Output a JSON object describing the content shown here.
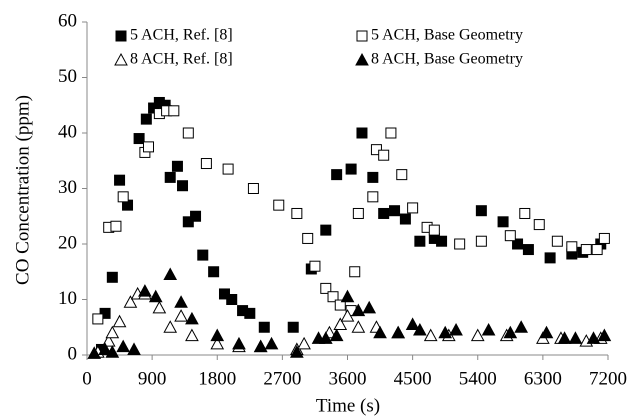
{
  "chart_data": {
    "type": "scatter",
    "x_label": "Time (s)",
    "y_label": "CO Concentration (ppm)",
    "xlim": [
      0,
      7200
    ],
    "xticks": [
      0,
      900,
      1800,
      2700,
      3600,
      4500,
      5400,
      6300,
      7200
    ],
    "ylim": [
      0,
      60
    ],
    "yticks": [
      0,
      10,
      20,
      30,
      40,
      50,
      60
    ],
    "grid": false,
    "series": [
      {
        "name": "5 ACH, Ref. [8]",
        "color": "#000000",
        "marker": "square",
        "filled": true,
        "x": [
          200,
          250,
          350,
          450,
          560,
          720,
          820,
          920,
          1000,
          1080,
          1150,
          1250,
          1320,
          1400,
          1500,
          1600,
          1750,
          1900,
          2000,
          2150,
          2250,
          2450,
          2850,
          3100,
          3300,
          3450,
          3650,
          3800,
          3950,
          4100,
          4250,
          4400,
          4600,
          4800,
          4900,
          5450,
          5750,
          5950,
          6100,
          6400,
          6700,
          6850,
          7100
        ],
        "values": [
          1,
          7.5,
          14,
          31.5,
          27,
          39,
          42.5,
          44.5,
          45.5,
          45,
          32,
          34,
          30.5,
          24,
          25,
          18,
          15,
          11,
          10,
          8,
          7.5,
          5,
          5,
          15.5,
          22.5,
          32.5,
          33.5,
          40,
          32,
          25.5,
          26,
          24.5,
          20.5,
          21,
          20.5,
          26,
          24,
          20,
          19,
          17.5,
          18.2,
          18.5,
          20
        ]
      },
      {
        "name": "5 ACH, Base Geometry",
        "color": "#000000",
        "marker": "square",
        "filled": false,
        "x": [
          150,
          300,
          400,
          500,
          800,
          850,
          1000,
          1100,
          1200,
          1400,
          1650,
          1950,
          2300,
          2650,
          2900,
          3050,
          3150,
          3300,
          3400,
          3500,
          3650,
          3700,
          3750,
          3950,
          4000,
          4100,
          4200,
          4350,
          4500,
          4700,
          4800,
          5150,
          5450,
          5850,
          6050,
          6250,
          6500,
          6700,
          6900,
          7050,
          7150
        ],
        "values": [
          6.5,
          23,
          23.2,
          28.5,
          36.5,
          37.5,
          43.5,
          44,
          44,
          40,
          34.5,
          33.5,
          30,
          27,
          25.5,
          21,
          16,
          12,
          10.5,
          9,
          8,
          15,
          25.5,
          28.5,
          37,
          36,
          40,
          32.5,
          26.5,
          23,
          22.5,
          20,
          20.5,
          21.5,
          25.5,
          23.5,
          20.5,
          19.5,
          19,
          19,
          21
        ]
      },
      {
        "name": "8 ACH, Ref. [8]",
        "color": "#000000",
        "marker": "triangle",
        "filled": false,
        "x": [
          150,
          300,
          350,
          450,
          600,
          700,
          800,
          1000,
          1150,
          1300,
          1450,
          1800,
          2100,
          2400,
          2900,
          3000,
          3350,
          3500,
          3600,
          3750,
          4000,
          4300,
          4750,
          5000,
          5400,
          5800,
          6300,
          6550,
          6900,
          7100
        ],
        "values": [
          0.5,
          2.5,
          4,
          6,
          9.5,
          11,
          11,
          8.5,
          5,
          7,
          3.5,
          2,
          1.5,
          1.5,
          1,
          2,
          4,
          5.5,
          7,
          5,
          5,
          4,
          3.5,
          3.5,
          3.5,
          3.5,
          3,
          3,
          2.5,
          3
        ]
      },
      {
        "name": "8 ACH, Base Geometry",
        "color": "#000000",
        "marker": "triangle",
        "filled": true,
        "x": [
          100,
          250,
          350,
          500,
          650,
          800,
          950,
          1150,
          1300,
          1450,
          1800,
          2100,
          2400,
          2550,
          2900,
          3200,
          3300,
          3450,
          3600,
          3750,
          3900,
          4050,
          4300,
          4500,
          4600,
          4950,
          5100,
          5550,
          5850,
          6000,
          6350,
          6600,
          6750,
          7000,
          7150
        ],
        "values": [
          0.3,
          1,
          0.5,
          1.5,
          1,
          11.5,
          10.5,
          14.5,
          9.5,
          6.5,
          3.5,
          2,
          1.5,
          2,
          0.5,
          3,
          3,
          3.5,
          10.5,
          8,
          8.5,
          4,
          4,
          5.5,
          4.5,
          4,
          4.5,
          4.5,
          4,
          5,
          4,
          3,
          3,
          3,
          3.5
        ]
      }
    ]
  }
}
